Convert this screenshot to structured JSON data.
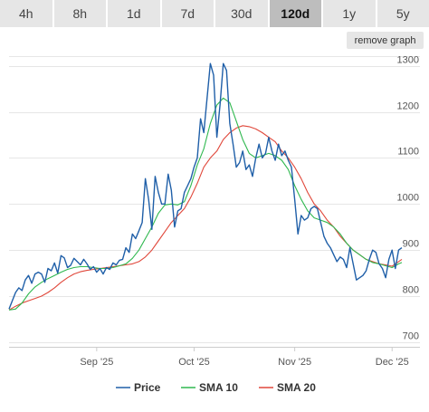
{
  "tabs": [
    {
      "label": "4h",
      "active": false
    },
    {
      "label": "8h",
      "active": false
    },
    {
      "label": "1d",
      "active": false
    },
    {
      "label": "7d",
      "active": false
    },
    {
      "label": "30d",
      "active": false
    },
    {
      "label": "120d",
      "active": true
    },
    {
      "label": "1y",
      "active": false
    },
    {
      "label": "5y",
      "active": false
    }
  ],
  "remove_graph_label": "remove graph",
  "chart_data": {
    "type": "line",
    "x_unit": "days",
    "x_ticks": [
      {
        "label": "Sep '25",
        "x": 27
      },
      {
        "label": "Oct '25",
        "x": 57
      },
      {
        "label": "Nov '25",
        "x": 88
      },
      {
        "label": "Dec '25",
        "x": 118
      }
    ],
    "xlim": [
      0,
      121
    ],
    "ylim": [
      690,
      1325
    ],
    "y_ticks": [
      700,
      800,
      900,
      1000,
      1100,
      1200,
      1300
    ],
    "grid": true,
    "legend_position": "bottom-center",
    "series": [
      {
        "name": "Price",
        "color": "#1f5fa8",
        "x": [
          0,
          1,
          2,
          3,
          4,
          5,
          6,
          7,
          8,
          9,
          10,
          11,
          12,
          13,
          14,
          15,
          16,
          17,
          18,
          19,
          20,
          21,
          22,
          23,
          24,
          25,
          26,
          27,
          28,
          29,
          30,
          31,
          32,
          33,
          34,
          35,
          36,
          37,
          38,
          39,
          40,
          41,
          42,
          43,
          44,
          45,
          46,
          47,
          48,
          49,
          50,
          51,
          52,
          53,
          54,
          55,
          56,
          57,
          58,
          59,
          60,
          61,
          62,
          63,
          64,
          65,
          66,
          67,
          68,
          69,
          70,
          71,
          72,
          73,
          74,
          75,
          76,
          77,
          78,
          79,
          80,
          81,
          82,
          83,
          84,
          85,
          86,
          87,
          88,
          89,
          90,
          91,
          92,
          93,
          94,
          95,
          96,
          97,
          98,
          99,
          100,
          101,
          102,
          103,
          104,
          105,
          106,
          107,
          108,
          109,
          110,
          111,
          112,
          113,
          114,
          115,
          116,
          117,
          118,
          119,
          120,
          121
        ],
        "y": [
          772,
          790,
          808,
          818,
          812,
          835,
          845,
          828,
          848,
          852,
          848,
          830,
          860,
          855,
          872,
          850,
          888,
          883,
          862,
          867,
          882,
          875,
          868,
          880,
          870,
          858,
          864,
          852,
          860,
          848,
          862,
          858,
          872,
          868,
          878,
          880,
          905,
          895,
          935,
          925,
          942,
          960,
          1055,
          1010,
          945,
          1060,
          1025,
          1000,
          1000,
          1065,
          1030,
          950,
          985,
          990,
          1025,
          1040,
          1055,
          1080,
          1100,
          1185,
          1155,
          1230,
          1305,
          1280,
          1145,
          1215,
          1305,
          1290,
          1175,
          1130,
          1080,
          1090,
          1115,
          1075,
          1085,
          1060,
          1100,
          1130,
          1100,
          1110,
          1145,
          1115,
          1095,
          1130,
          1105,
          1115,
          1095,
          1080,
          1010,
          935,
          975,
          965,
          970,
          990,
          995,
          990,
          960,
          930,
          915,
          905,
          890,
          875,
          885,
          880,
          862,
          905,
          870,
          835,
          840,
          845,
          855,
          880,
          900,
          895,
          870,
          860,
          840,
          880,
          900,
          860,
          900,
          905
        ]
      },
      {
        "name": "SMA 10",
        "color": "#2fb84f",
        "x": [
          0,
          2,
          4,
          6,
          8,
          10,
          12,
          14,
          16,
          18,
          20,
          22,
          24,
          26,
          28,
          30,
          32,
          34,
          36,
          38,
          40,
          42,
          44,
          46,
          48,
          50,
          52,
          54,
          56,
          58,
          60,
          62,
          64,
          66,
          68,
          70,
          72,
          74,
          76,
          78,
          80,
          82,
          84,
          86,
          88,
          90,
          92,
          94,
          96,
          98,
          100,
          102,
          104,
          106,
          108,
          110,
          112,
          114,
          116,
          118,
          120,
          121
        ],
        "y": [
          770,
          772,
          785,
          805,
          820,
          830,
          838,
          845,
          852,
          858,
          862,
          864,
          864,
          862,
          860,
          860,
          862,
          866,
          870,
          882,
          900,
          925,
          950,
          980,
          998,
          1000,
          998,
          1005,
          1040,
          1085,
          1120,
          1175,
          1215,
          1230,
          1220,
          1180,
          1140,
          1110,
          1100,
          1105,
          1110,
          1105,
          1095,
          1075,
          1040,
          1010,
          985,
          970,
          965,
          960,
          950,
          935,
          915,
          900,
          890,
          880,
          873,
          870,
          866,
          862,
          870,
          873
        ]
      },
      {
        "name": "SMA 20",
        "color": "#e0473a",
        "x": [
          0,
          2,
          4,
          6,
          8,
          10,
          12,
          14,
          16,
          18,
          20,
          22,
          24,
          26,
          28,
          30,
          32,
          34,
          36,
          38,
          40,
          42,
          44,
          46,
          48,
          50,
          52,
          54,
          56,
          58,
          60,
          62,
          64,
          66,
          68,
          70,
          72,
          74,
          76,
          78,
          80,
          82,
          84,
          86,
          88,
          90,
          92,
          94,
          96,
          98,
          100,
          102,
          104,
          106,
          108,
          110,
          112,
          114,
          116,
          118,
          120,
          121
        ],
        "y": [
          770,
          778,
          785,
          790,
          795,
          800,
          808,
          818,
          830,
          840,
          848,
          853,
          856,
          858,
          860,
          862,
          864,
          866,
          868,
          870,
          875,
          885,
          900,
          920,
          940,
          960,
          975,
          990,
          1015,
          1045,
          1080,
          1100,
          1115,
          1140,
          1155,
          1165,
          1170,
          1168,
          1163,
          1155,
          1145,
          1135,
          1115,
          1100,
          1080,
          1055,
          1025,
          1000,
          985,
          965,
          950,
          930,
          915,
          900,
          890,
          880,
          875,
          870,
          868,
          865,
          875,
          880
        ]
      }
    ]
  }
}
